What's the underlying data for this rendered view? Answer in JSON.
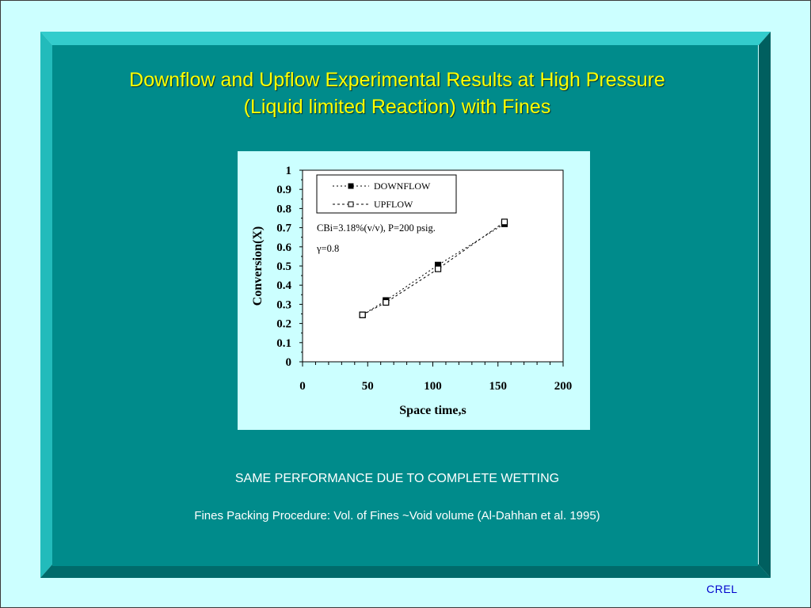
{
  "slide": {
    "title_line1": "Downflow and Upflow Experimental Results at High Pressure",
    "title_line2": "(Liquid limited Reaction) with Fines",
    "caption_main": "SAME PERFORMANCE DUE TO COMPLETE WETTING",
    "caption_sub": "Fines Packing Procedure: Vol. of Fines ~Void volume (Al-Dahhan et al. 1995)",
    "footer_logo": "CREL"
  },
  "colors": {
    "background": "#ccffff",
    "panel": "#008b8b",
    "title": "#ffff00",
    "caption": "#ffffff",
    "logo": "#0000cc"
  },
  "chart_data": {
    "type": "scatter",
    "xlabel": "Space time,s",
    "ylabel": "Conversion(X)",
    "xlim": [
      0,
      200
    ],
    "ylim": [
      0,
      1
    ],
    "xticks": [
      "0",
      "50",
      "100",
      "150",
      "200"
    ],
    "yticks": [
      "0",
      "0.1",
      "0.2",
      "0.3",
      "0.4",
      "0.5",
      "0.6",
      "0.7",
      "0.8",
      "0.9",
      "1"
    ],
    "grid": false,
    "legend_position": "top-left",
    "annotations": [
      "CBi=3.18%(v/v), P=200 psig.",
      "γ=0.8"
    ],
    "series": [
      {
        "name": "DOWNFLOW",
        "marker": "filled-square",
        "line": "dotted",
        "x": [
          46,
          64,
          104,
          155
        ],
        "y": [
          0.245,
          0.32,
          0.505,
          0.72
        ]
      },
      {
        "name": "UPFLOW",
        "marker": "open-square",
        "line": "dotted",
        "x": [
          46,
          64,
          104,
          155
        ],
        "y": [
          0.245,
          0.31,
          0.485,
          0.73
        ]
      }
    ]
  }
}
